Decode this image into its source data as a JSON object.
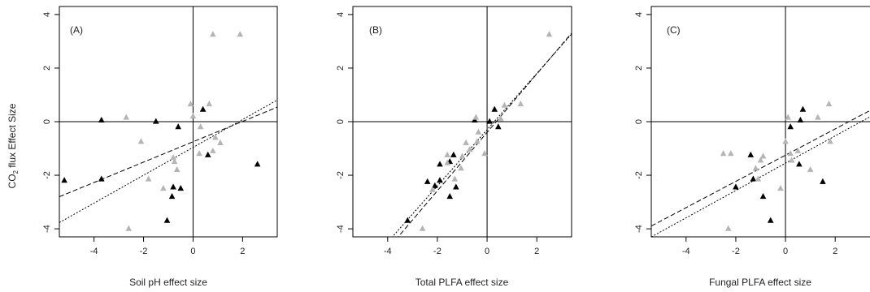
{
  "figure": {
    "ylabel_main": "CO",
    "ylabel_sub": "2",
    "ylabel_rest": " flux Effect Size"
  },
  "colors": {
    "black_points": "#000000",
    "grey_points": "#b5b5b5",
    "lines": "#000000"
  },
  "chart_data": [
    {
      "type": "scatter",
      "panel_label": "(A)",
      "xlabel": "Soil pH effect size",
      "ylabel": "CO2 flux Effect Size",
      "xlim": [
        -5.4,
        3.4
      ],
      "ylim": [
        -4.3,
        4.3
      ],
      "xticks": [
        -4,
        -2,
        0,
        2
      ],
      "yticks": [
        -4,
        -2,
        0,
        2,
        4
      ],
      "series": [
        {
          "color": "black",
          "points": [
            [
              -5.2,
              -2.2
            ],
            [
              -3.7,
              -2.15
            ],
            [
              -3.7,
              0.05
            ],
            [
              -1.5,
              0.0
            ],
            [
              -0.6,
              -0.2
            ],
            [
              0.4,
              0.45
            ],
            [
              0.6,
              -1.25
            ],
            [
              -0.8,
              -2.45
            ],
            [
              -0.5,
              -2.5
            ],
            [
              -0.85,
              -2.8
            ],
            [
              -1.05,
              -3.7
            ],
            [
              2.6,
              -1.6
            ]
          ]
        },
        {
          "color": "grey",
          "points": [
            [
              -2.7,
              0.15
            ],
            [
              -2.6,
              -4.0
            ],
            [
              -2.1,
              -0.75
            ],
            [
              -1.8,
              -2.15
            ],
            [
              -0.8,
              -1.35
            ],
            [
              -0.75,
              -1.5
            ],
            [
              -0.65,
              -1.8
            ],
            [
              -0.1,
              0.65
            ],
            [
              0.0,
              0.2
            ],
            [
              0.25,
              -1.2
            ],
            [
              0.65,
              0.65
            ],
            [
              0.8,
              3.25
            ],
            [
              0.8,
              -1.1
            ],
            [
              0.9,
              -0.6
            ],
            [
              1.1,
              -0.8
            ],
            [
              1.9,
              3.25
            ],
            [
              0.3,
              -0.2
            ],
            [
              -1.2,
              -2.5
            ]
          ]
        }
      ],
      "fit_lines": [
        {
          "style": "dashed",
          "slope": 0.38,
          "intercept": -0.75
        },
        {
          "style": "dotted",
          "slope": 0.52,
          "intercept": -0.96
        }
      ]
    },
    {
      "type": "scatter",
      "panel_label": "(B)",
      "xlabel": "Total PLFA effect size",
      "ylabel": "CO2 flux Effect Size",
      "xlim": [
        -5.4,
        3.4
      ],
      "ylim": [
        -4.3,
        4.3
      ],
      "xticks": [
        -4,
        -2,
        0,
        2
      ],
      "yticks": [
        -4,
        -2,
        0,
        2,
        4
      ],
      "series": [
        {
          "color": "black",
          "points": [
            [
              -3.2,
              -3.7
            ],
            [
              -2.4,
              -2.25
            ],
            [
              -2.1,
              -2.4
            ],
            [
              -1.9,
              -1.6
            ],
            [
              -1.9,
              -2.2
            ],
            [
              -1.5,
              -1.5
            ],
            [
              -1.35,
              -1.25
            ],
            [
              -1.25,
              -2.45
            ],
            [
              -1.5,
              -2.8
            ],
            [
              -0.5,
              0.05
            ],
            [
              0.3,
              0.45
            ],
            [
              0.45,
              -0.2
            ],
            [
              0.1,
              0.0
            ]
          ]
        },
        {
          "color": "grey",
          "points": [
            [
              -2.6,
              -4.0
            ],
            [
              -2.2,
              -2.55
            ],
            [
              -1.6,
              -1.25
            ],
            [
              -1.6,
              -1.55
            ],
            [
              -1.3,
              -2.15
            ],
            [
              -1.05,
              -1.75
            ],
            [
              -1.0,
              -1.3
            ],
            [
              -0.85,
              -0.8
            ],
            [
              -0.45,
              0.15
            ],
            [
              -0.35,
              -0.4
            ],
            [
              -0.1,
              -1.2
            ],
            [
              0.55,
              0.1
            ],
            [
              0.7,
              0.6
            ],
            [
              1.35,
              0.65
            ],
            [
              2.5,
              3.25
            ],
            [
              -0.7,
              -1.05
            ],
            [
              -0.4,
              -0.75
            ]
          ]
        }
      ],
      "fit_lines": [
        {
          "style": "dashed",
          "slope": 1.09,
          "intercept": -0.4
        },
        {
          "style": "dotted",
          "slope": 1.05,
          "intercept": -0.3
        }
      ]
    },
    {
      "type": "scatter",
      "panel_label": "(C)",
      "xlabel": "Fungal PLFA effect size",
      "ylabel": "CO2 flux Effect Size",
      "xlim": [
        -5.4,
        3.4
      ],
      "ylim": [
        -4.3,
        4.3
      ],
      "xticks": [
        -4,
        -2,
        0,
        2
      ],
      "yticks": [
        -4,
        -2,
        0,
        2,
        4
      ],
      "series": [
        {
          "color": "black",
          "points": [
            [
              -2.0,
              -2.45
            ],
            [
              -1.4,
              -1.25
            ],
            [
              -1.3,
              -2.15
            ],
            [
              -0.9,
              -2.8
            ],
            [
              -0.6,
              -3.7
            ],
            [
              0.2,
              -0.2
            ],
            [
              0.6,
              0.05
            ],
            [
              0.7,
              0.45
            ],
            [
              0.55,
              -1.6
            ],
            [
              1.5,
              -2.25
            ]
          ]
        },
        {
          "color": "grey",
          "points": [
            [
              -2.5,
              -1.2
            ],
            [
              -2.2,
              -1.2
            ],
            [
              -2.3,
              -4.0
            ],
            [
              -1.2,
              -1.75
            ],
            [
              -1.0,
              -1.45
            ],
            [
              -0.9,
              -1.3
            ],
            [
              -0.2,
              -2.5
            ],
            [
              0.0,
              -0.75
            ],
            [
              0.1,
              0.15
            ],
            [
              0.2,
              -1.2
            ],
            [
              0.5,
              -1.1
            ],
            [
              1.0,
              -1.8
            ],
            [
              1.3,
              0.15
            ],
            [
              1.75,
              0.65
            ],
            [
              1.8,
              -0.75
            ],
            [
              -1.1,
              -2.15
            ],
            [
              0.25,
              -1.45
            ]
          ]
        }
      ],
      "fit_lines": [
        {
          "style": "dashed",
          "slope": 0.49,
          "intercept": -1.25
        },
        {
          "style": "dotted",
          "slope": 0.51,
          "intercept": -1.55
        }
      ]
    }
  ]
}
